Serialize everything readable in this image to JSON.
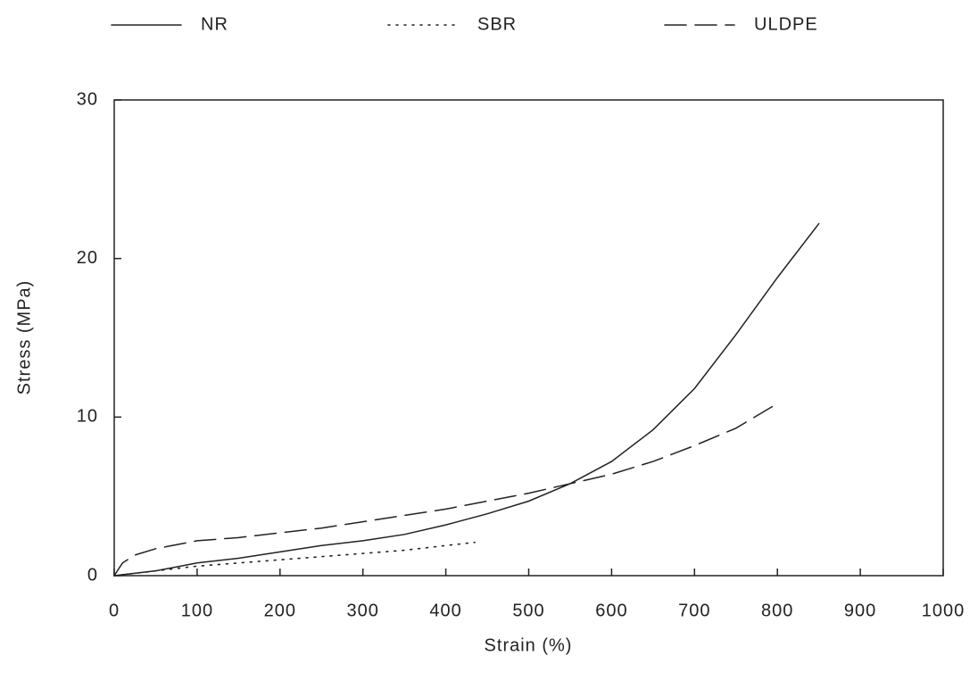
{
  "chart_data": {
    "type": "line",
    "x_label": "Strain (%)",
    "y_label": "Stress (MPa)",
    "xlim": [
      0,
      1000
    ],
    "ylim": [
      0,
      30
    ],
    "xticks": [
      0,
      100,
      200,
      300,
      400,
      500,
      600,
      700,
      800,
      900,
      1000
    ],
    "yticks": [
      0,
      10,
      20,
      30
    ],
    "grid": false,
    "legend": "top",
    "series": [
      {
        "name": "NR",
        "color": "#222222",
        "style": "solid",
        "x": [
          0,
          50,
          100,
          150,
          200,
          250,
          300,
          350,
          400,
          450,
          500,
          550,
          600,
          650,
          700,
          750,
          800,
          850
        ],
        "values": [
          0,
          0.3,
          0.8,
          1.1,
          1.5,
          1.9,
          2.2,
          2.6,
          3.2,
          3.9,
          4.7,
          5.8,
          7.2,
          9.2,
          11.8,
          15.2,
          18.8,
          22.2
        ]
      },
      {
        "name": "SBR",
        "color": "#222222",
        "style": "dotted",
        "x": [
          0,
          50,
          100,
          150,
          200,
          250,
          300,
          350,
          400,
          435
        ],
        "values": [
          0,
          0.3,
          0.6,
          0.8,
          1.0,
          1.2,
          1.4,
          1.6,
          1.9,
          2.1
        ]
      },
      {
        "name": "ULDPE",
        "color": "#222222",
        "style": "dashed",
        "x": [
          0,
          10,
          25,
          50,
          100,
          150,
          200,
          250,
          300,
          350,
          400,
          450,
          500,
          550,
          600,
          650,
          700,
          750,
          795
        ],
        "values": [
          0,
          0.8,
          1.3,
          1.7,
          2.2,
          2.4,
          2.7,
          3.0,
          3.4,
          3.8,
          4.2,
          4.7,
          5.2,
          5.8,
          6.4,
          7.2,
          8.2,
          9.3,
          10.7
        ]
      }
    ]
  }
}
